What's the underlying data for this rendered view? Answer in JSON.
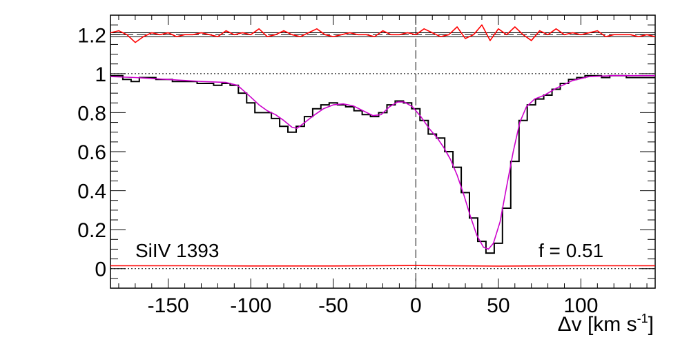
{
  "chart_data": {
    "type": "line",
    "title": "",
    "xlabel": "Δv [km s⁻¹]",
    "xlabel_parts": {
      "main": "Δv [km s",
      "sup": "-1",
      "close": "]"
    },
    "ylabel": "",
    "xlim": [
      -185,
      145
    ],
    "ylim": [
      -0.1,
      1.3
    ],
    "x_ticks": [
      -150,
      -100,
      -50,
      0,
      50,
      100
    ],
    "x_tick_labels": [
      "-150",
      "-100",
      "-50",
      "0",
      "50",
      "100"
    ],
    "y_ticks": [
      0,
      0.2,
      0.4,
      0.6,
      0.8,
      1,
      1.2
    ],
    "y_tick_labels": [
      "0",
      "0.2",
      "0.4",
      "0.6",
      "0.8",
      "1",
      "1.2"
    ],
    "annotations": {
      "ion": "SiIV 1393",
      "f_value": "f = 0.51"
    },
    "reference_lines": {
      "continuum": 1.0,
      "zero": 0.0,
      "residual_level": 1.2,
      "residual_band": [
        1.19,
        1.21
      ],
      "vertical_zero_velocity": 0
    },
    "colors": {
      "data": "#000000",
      "model": "#cc00cc",
      "residual": "#ff0000",
      "error": "#ff0000"
    },
    "series": [
      {
        "style": "histogram",
        "x": [
          -185,
          -180,
          -175,
          -170,
          -165,
          -160,
          -155,
          -150,
          -145,
          -140,
          -135,
          -130,
          -125,
          -120,
          -115,
          -110,
          -105,
          -100,
          -95,
          -90,
          -85,
          -80,
          -75,
          -70,
          -65,
          -60,
          -55,
          -50,
          -45,
          -40,
          -35,
          -30,
          -25,
          -20,
          -15,
          -10,
          -5,
          0,
          5,
          10,
          15,
          20,
          25,
          30,
          35,
          40,
          45,
          50,
          55,
          60,
          65,
          70,
          75,
          80,
          85,
          90,
          95,
          100,
          105,
          110,
          115,
          120,
          125,
          130,
          135,
          140,
          145
        ],
        "y": [
          0.99,
          0.99,
          0.97,
          0.96,
          0.98,
          0.98,
          0.97,
          0.97,
          0.96,
          0.96,
          0.96,
          0.95,
          0.95,
          0.94,
          0.95,
          0.94,
          0.9,
          0.85,
          0.8,
          0.8,
          0.77,
          0.73,
          0.7,
          0.73,
          0.78,
          0.82,
          0.84,
          0.85,
          0.84,
          0.83,
          0.81,
          0.79,
          0.78,
          0.8,
          0.84,
          0.86,
          0.85,
          0.82,
          0.76,
          0.69,
          0.67,
          0.6,
          0.52,
          0.39,
          0.26,
          0.14,
          0.08,
          0.13,
          0.31,
          0.55,
          0.76,
          0.84,
          0.87,
          0.89,
          0.92,
          0.95,
          0.97,
          0.98,
          0.99,
          0.99,
          0.98,
          0.99,
          0.99,
          0.98,
          0.98,
          0.98,
          0.98
        ]
      },
      {
        "style": "smooth",
        "x": [
          -185,
          -170,
          -150,
          -130,
          -115,
          -108,
          -100,
          -95,
          -90,
          -85,
          -80,
          -75,
          -72,
          -68,
          -62,
          -56,
          -50,
          -44,
          -38,
          -32,
          -26,
          -21,
          -16,
          -11,
          -7,
          -2,
          3,
          8,
          13,
          17,
          21,
          25,
          29,
          33,
          37,
          41,
          44,
          47,
          51,
          55,
          59,
          63,
          67,
          72,
          78,
          85,
          95,
          105,
          120,
          145
        ],
        "y": [
          0.985,
          0.98,
          0.97,
          0.96,
          0.955,
          0.94,
          0.88,
          0.84,
          0.81,
          0.79,
          0.76,
          0.725,
          0.72,
          0.745,
          0.785,
          0.82,
          0.84,
          0.845,
          0.835,
          0.81,
          0.785,
          0.79,
          0.83,
          0.855,
          0.855,
          0.83,
          0.78,
          0.72,
          0.67,
          0.62,
          0.56,
          0.48,
          0.38,
          0.27,
          0.17,
          0.11,
          0.1,
          0.13,
          0.24,
          0.42,
          0.6,
          0.75,
          0.83,
          0.87,
          0.89,
          0.925,
          0.965,
          0.985,
          0.99,
          0.99
        ]
      },
      {
        "style": "residual",
        "x": [
          -185,
          -180,
          -175,
          -170,
          -165,
          -160,
          -155,
          -150,
          -145,
          -140,
          -135,
          -130,
          -125,
          -120,
          -115,
          -110,
          -105,
          -100,
          -95,
          -90,
          -85,
          -80,
          -75,
          -70,
          -65,
          -60,
          -55,
          -50,
          -45,
          -40,
          -35,
          -30,
          -25,
          -20,
          -15,
          -10,
          -5,
          0,
          5,
          10,
          15,
          20,
          25,
          30,
          35,
          40,
          45,
          50,
          55,
          60,
          65,
          70,
          75,
          80,
          85,
          90,
          95,
          100,
          105,
          110,
          115,
          120,
          125,
          130,
          135,
          140,
          145
        ],
        "y": [
          1.21,
          1.22,
          1.2,
          1.16,
          1.19,
          1.21,
          1.2,
          1.21,
          1.19,
          1.2,
          1.2,
          1.21,
          1.2,
          1.19,
          1.22,
          1.2,
          1.21,
          1.2,
          1.23,
          1.19,
          1.2,
          1.22,
          1.2,
          1.19,
          1.21,
          1.23,
          1.2,
          1.19,
          1.2,
          1.21,
          1.2,
          1.2,
          1.19,
          1.22,
          1.2,
          1.2,
          1.21,
          1.2,
          1.23,
          1.21,
          1.19,
          1.2,
          1.24,
          1.18,
          1.2,
          1.25,
          1.17,
          1.23,
          1.2,
          1.24,
          1.2,
          1.17,
          1.22,
          1.2,
          1.23,
          1.2,
          1.21,
          1.2,
          1.21,
          1.22,
          1.19,
          1.2,
          1.2,
          1.2,
          1.19,
          1.2,
          1.19
        ]
      },
      {
        "style": "error",
        "x": [
          -185,
          -140,
          -100,
          -50,
          0,
          50,
          100,
          145
        ],
        "y": [
          0.015,
          0.015,
          0.014,
          0.014,
          0.016,
          0.013,
          0.015,
          0.015
        ]
      }
    ]
  }
}
